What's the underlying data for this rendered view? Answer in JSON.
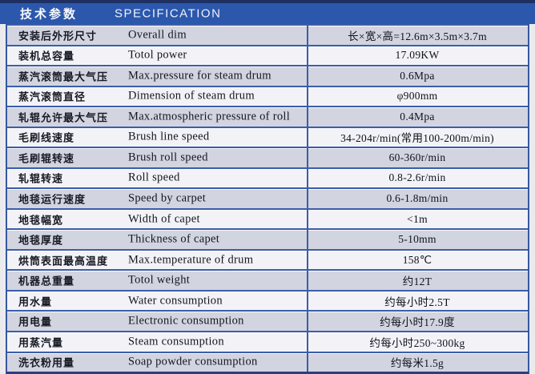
{
  "header": {
    "title_zh": "技术参数",
    "title_en": "SPECIFICATION"
  },
  "colors": {
    "top_strip": "#1e3063",
    "header_bg": "#2b58ac",
    "row_gray": "#d2d4e0",
    "row_white": "#f3f3f7",
    "grid_line": "#3a5ea8"
  },
  "table": {
    "columns": [
      "parameter_zh",
      "parameter_en",
      "value"
    ],
    "rows": [
      {
        "zh": "安装后外形尺寸",
        "en": "Overall dim",
        "value": "长×宽×高=12.6m×3.5m×3.7m"
      },
      {
        "zh": "装机总容量",
        "en": "Totol power",
        "value": "17.09KW"
      },
      {
        "zh": "蒸汽滚筒最大气压",
        "en": "Max.pressure for steam drum",
        "value": "0.6Mpa"
      },
      {
        "zh": "蒸汽滚筒直径",
        "en": "Dimension of steam drum",
        "value": "φ900mm"
      },
      {
        "zh": "轧辊允许最大气压",
        "en": "Max.atmospheric pressure of roll",
        "value": "0.4Mpa"
      },
      {
        "zh": "毛刷线速度",
        "en": "Brush line speed",
        "value": "34-204r/min(常用100-200m/min)"
      },
      {
        "zh": "毛刷辊转速",
        "en": "Brush roll speed",
        "value": "60-360r/min"
      },
      {
        "zh": "轧辊转速",
        "en": "Roll speed",
        "value": "0.8-2.6r/min"
      },
      {
        "zh": "地毯运行速度",
        "en": "Speed by carpet",
        "value": "0.6-1.8m/min"
      },
      {
        "zh": "地毯幅宽",
        "en": "Width of capet",
        "value": "<1m"
      },
      {
        "zh": "地毯厚度",
        "en": "Thickness of capet",
        "value": "5-10mm"
      },
      {
        "zh": "烘筒表面最高温度",
        "en": "Max.temperature of drum",
        "value": "158℃"
      },
      {
        "zh": "机器总重量",
        "en": "Totol weight",
        "value": "约12T"
      },
      {
        "zh": "用水量",
        "en": "Water consumption",
        "value": "约每小时2.5T"
      },
      {
        "zh": "用电量",
        "en": "Electronic consumption",
        "value": "约每小时17.9度"
      },
      {
        "zh": "用蒸汽量",
        "en": "Steam consumption",
        "value": "约每小时250~300kg"
      },
      {
        "zh": "洗衣粉用量",
        "en": "Soap powder consumption",
        "value": "约每米1.5g"
      }
    ]
  }
}
